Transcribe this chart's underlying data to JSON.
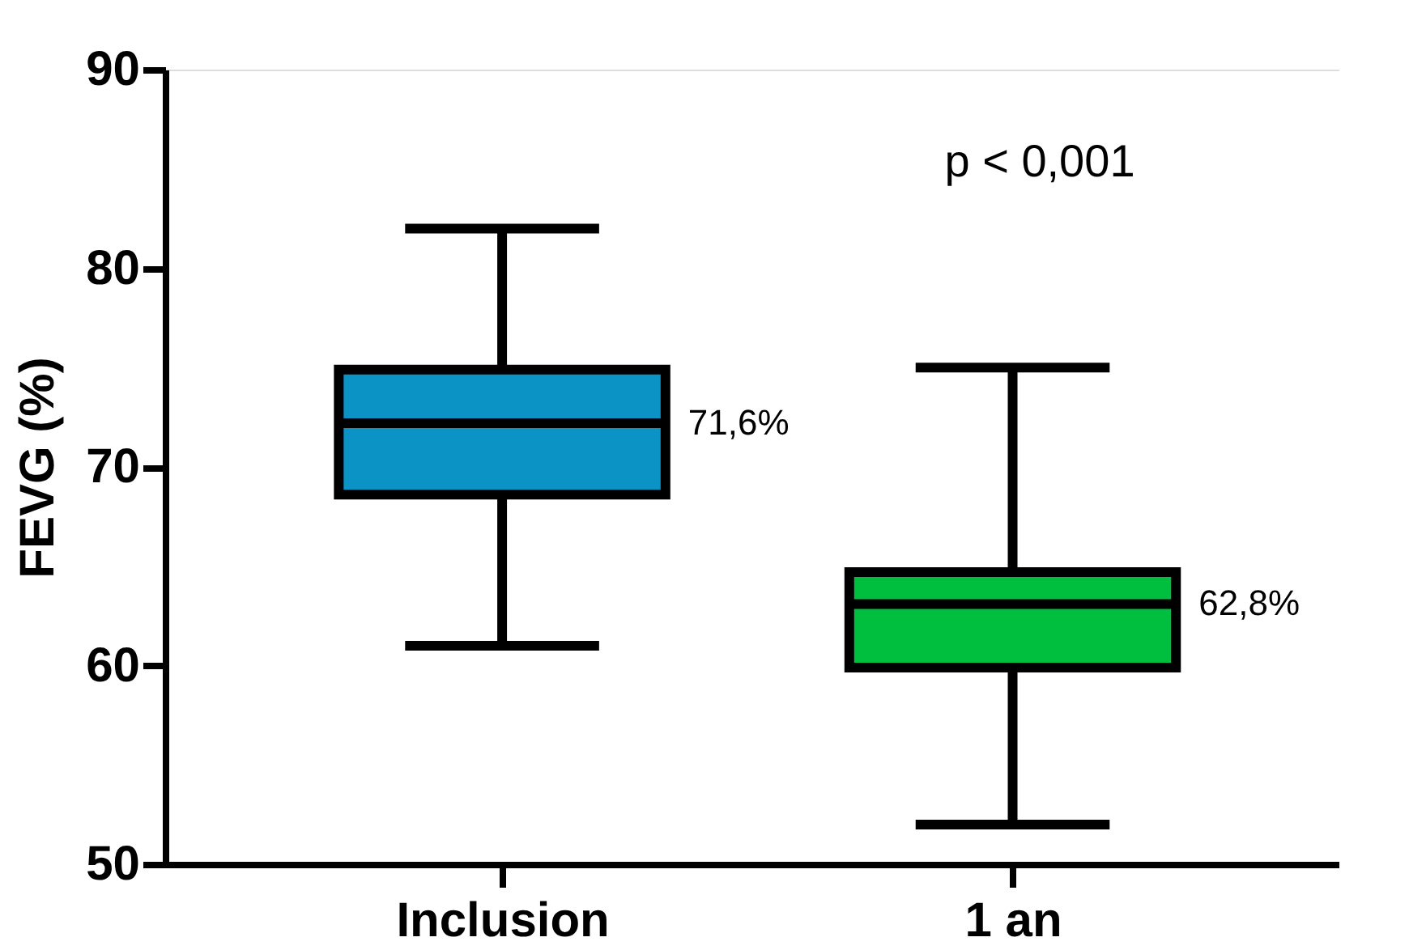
{
  "chart_data": {
    "type": "box",
    "ylabel": "FEVG (%)",
    "categories": [
      "Inclusion",
      "1 an"
    ],
    "boxes": [
      {
        "low": 61,
        "q1": 68.6,
        "median": 72.2,
        "q3": 74.9,
        "high": 82
      },
      {
        "low": 52,
        "q1": 59.9,
        "median": 63.1,
        "q3": 64.7,
        "high": 75
      }
    ],
    "colors": [
      "#0a93c4",
      "#00bf3f"
    ],
    "ylim": [
      50,
      90
    ],
    "yticks": [
      50,
      60,
      70,
      80,
      90
    ],
    "grid": false,
    "annotations": [
      "71,6%",
      "62,8%",
      "p < 0,001"
    ]
  }
}
